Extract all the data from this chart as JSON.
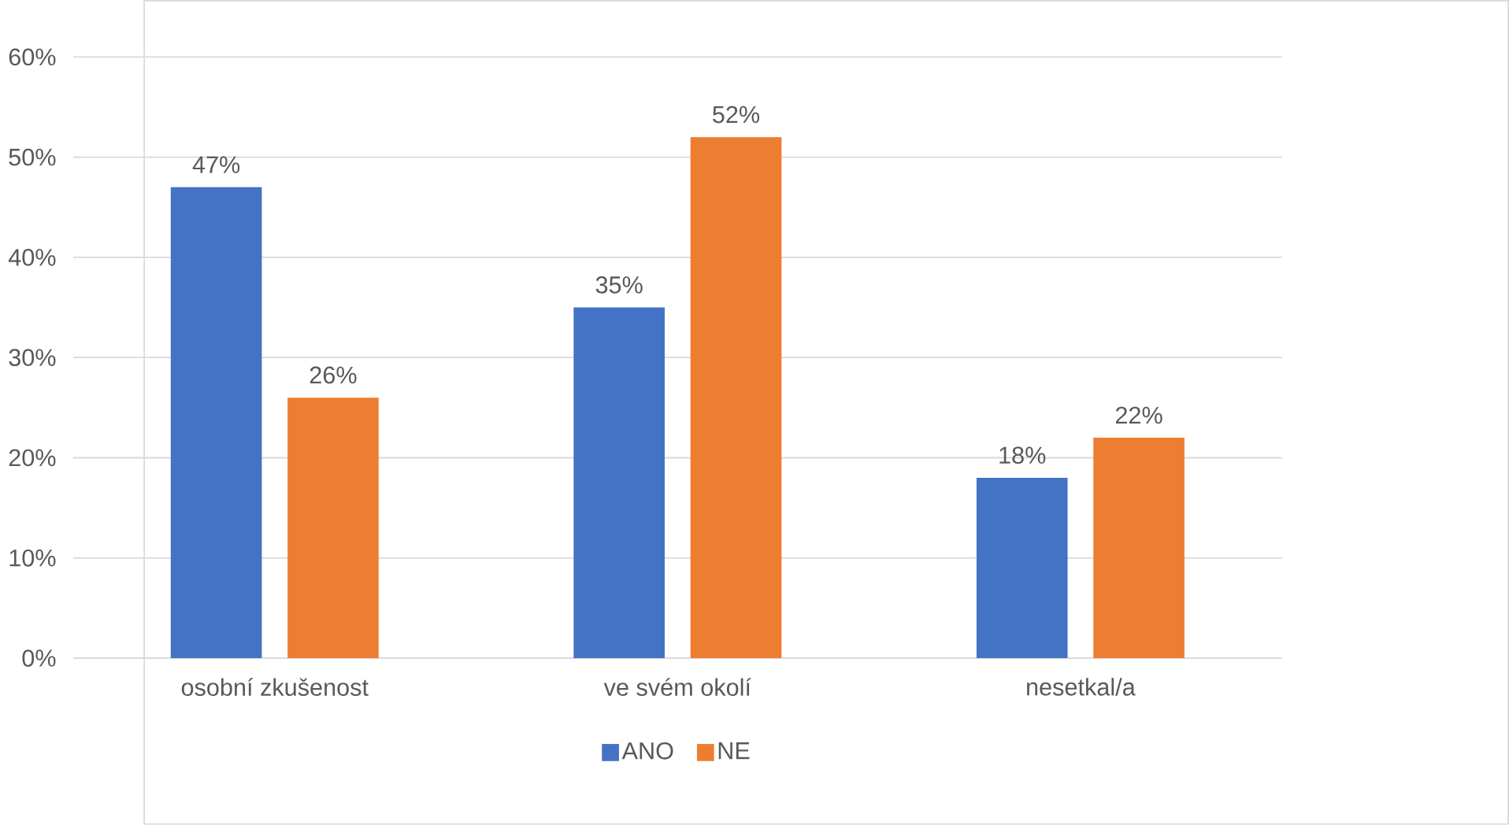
{
  "chart_data": {
    "type": "bar",
    "categories": [
      "osobní zkušenost",
      "ve svém okolí",
      "nesetkal/a"
    ],
    "series": [
      {
        "name": "ANO",
        "color": "#4472c4",
        "values": [
          47,
          35,
          18
        ],
        "value_labels": [
          "47%",
          "35%",
          "18%"
        ]
      },
      {
        "name": "NE",
        "color": "#ed7d31",
        "values": [
          26,
          52,
          22
        ],
        "value_labels": [
          "26%",
          "52%",
          "22%"
        ]
      }
    ],
    "ylim": [
      0,
      60
    ],
    "yticks": [
      {
        "value": 0,
        "label": "0%"
      },
      {
        "value": 10,
        "label": "10%"
      },
      {
        "value": 20,
        "label": "20%"
      },
      {
        "value": 30,
        "label": "30%"
      },
      {
        "value": 40,
        "label": "40%"
      },
      {
        "value": 50,
        "label": "50%"
      },
      {
        "value": 60,
        "label": "60%"
      }
    ],
    "grid": "y",
    "legend": "bottom"
  }
}
